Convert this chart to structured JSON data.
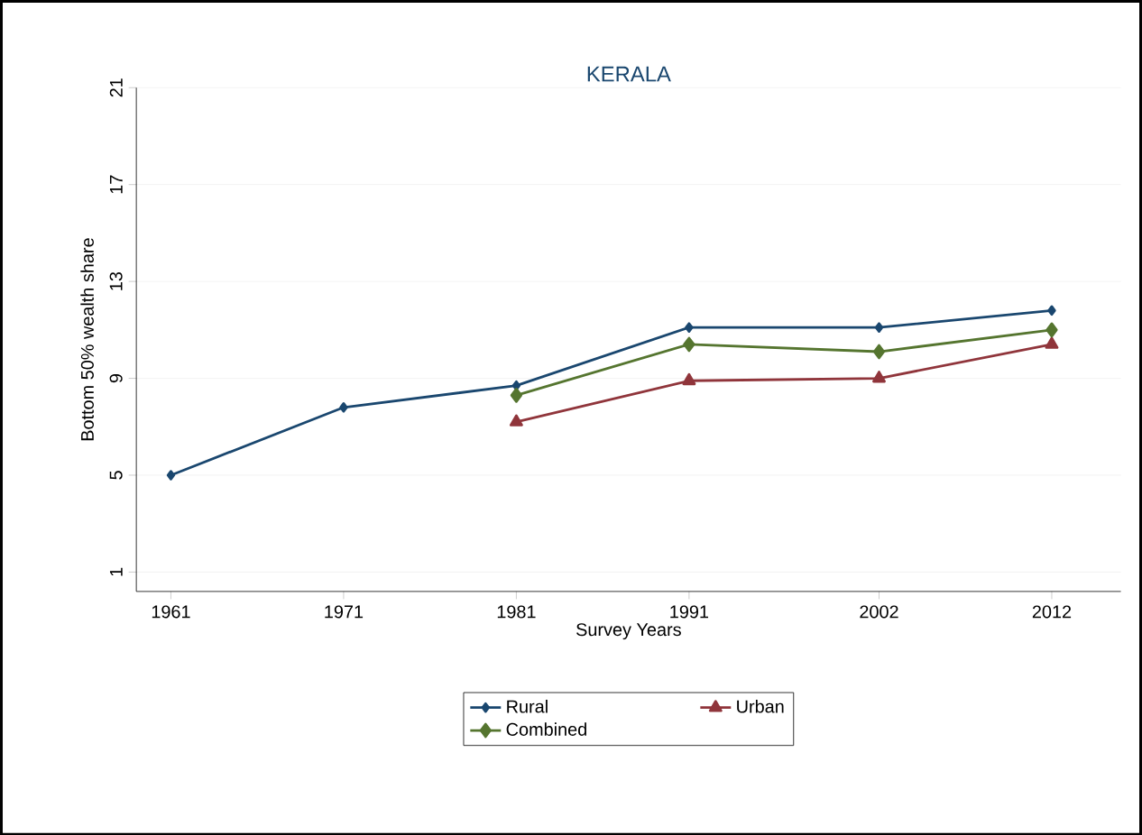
{
  "chart_data": {
    "type": "line",
    "title": "KERALA",
    "xlabel": "Survey Years",
    "ylabel": "Bottom 50% wealth share",
    "xlim": [
      1959,
      2016
    ],
    "xticks": [
      1961,
      1971,
      1981,
      1991,
      2002,
      2012
    ],
    "ylim": [
      0.2,
      21
    ],
    "yticks": [
      1,
      5,
      9,
      13,
      17,
      21
    ],
    "grid": "y",
    "legend": "bottom",
    "line_style": "solid",
    "series": [
      {
        "name": "Rural",
        "color": "#1a476f",
        "marker": "diamond",
        "x": [
          1961,
          1971,
          1981,
          1991,
          2002,
          2012
        ],
        "values": [
          5.0,
          7.8,
          8.7,
          11.1,
          11.1,
          11.8
        ]
      },
      {
        "name": "Urban",
        "color": "#90353b",
        "marker": "triangle",
        "x": [
          1981,
          1991,
          2002,
          2012
        ],
        "values": [
          7.2,
          8.9,
          9.0,
          10.4
        ]
      },
      {
        "name": "Combined",
        "color": "#55752f",
        "marker": "diamond",
        "x": [
          1981,
          1991,
          2002,
          2012
        ],
        "values": [
          8.3,
          10.4,
          10.1,
          11.0
        ]
      }
    ]
  }
}
